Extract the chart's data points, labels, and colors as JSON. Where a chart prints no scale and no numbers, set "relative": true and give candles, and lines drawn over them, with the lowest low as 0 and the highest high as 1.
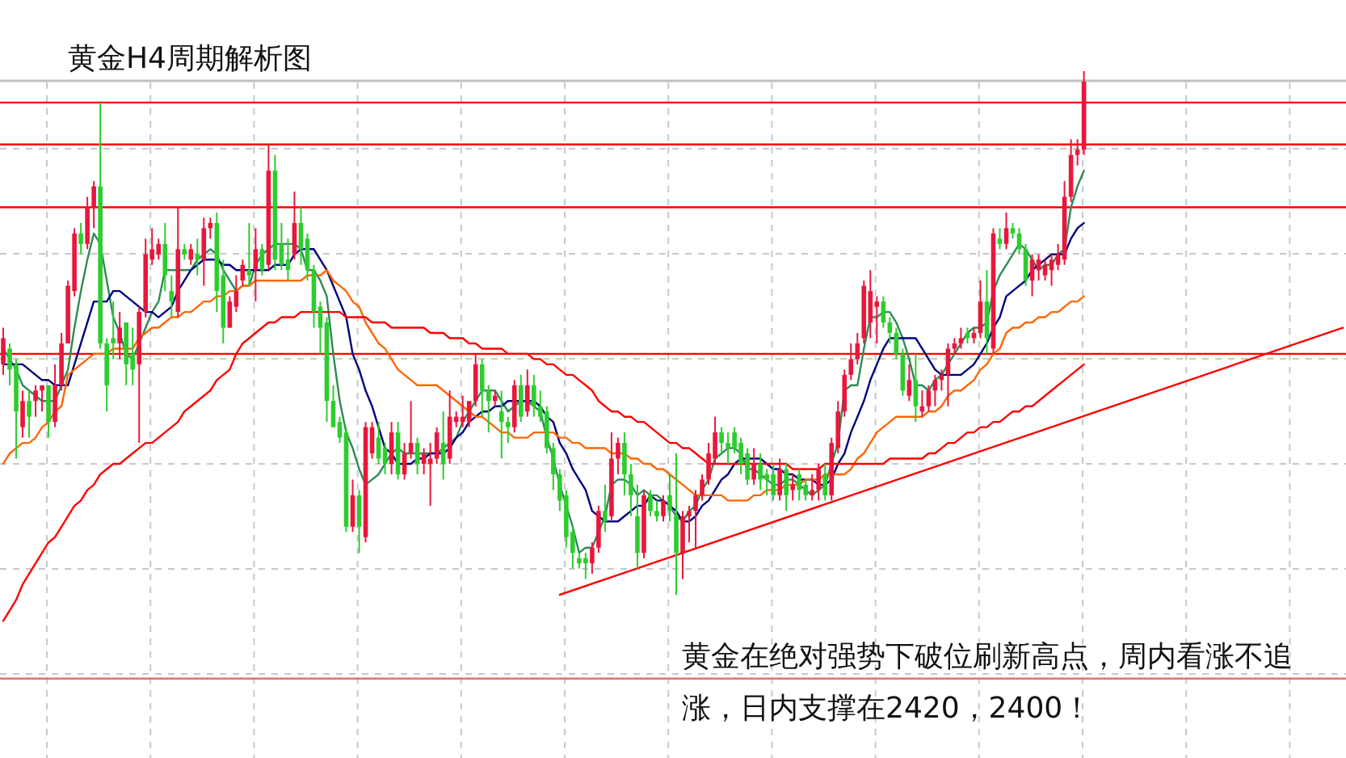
{
  "chart_data": {
    "type": "candlestick",
    "title": "黄金H4周期解析图",
    "annotations": [
      "黄金在绝对强势下破位刷新高点，周内看涨不追涨，日内支撑在2420，2400！"
    ],
    "relative": true,
    "grid": true,
    "categories": [
      null,
      null,
      null,
      null,
      null,
      null,
      null,
      null,
      null,
      null,
      null,
      null,
      null,
      null,
      null,
      null,
      null,
      null,
      null,
      null,
      null,
      null,
      null,
      null,
      null,
      null,
      null,
      null,
      null,
      null,
      null,
      null,
      null,
      null,
      null,
      null,
      null,
      null,
      null,
      null,
      null,
      null,
      null,
      null,
      null,
      null,
      null,
      null,
      null,
      null,
      null,
      null,
      null,
      null,
      null,
      null,
      null,
      null,
      null,
      null,
      null,
      null,
      null,
      null,
      null,
      null,
      null,
      null,
      null,
      null,
      null,
      null,
      null,
      null,
      null,
      null,
      null,
      null,
      null,
      null,
      null,
      null,
      null,
      null,
      null,
      null,
      null,
      null,
      null,
      null,
      null,
      null,
      null,
      null,
      null,
      null,
      null,
      null,
      null,
      null,
      null,
      null,
      null,
      null,
      null,
      null,
      null,
      null,
      null,
      null,
      null,
      null,
      null,
      null,
      null,
      null,
      null,
      null,
      null,
      null,
      null,
      null,
      null,
      null,
      null,
      null,
      null,
      null,
      null,
      null,
      null,
      null,
      null,
      null,
      null,
      null,
      null,
      null,
      null,
      null,
      null,
      null,
      null,
      null,
      null,
      null,
      null,
      null,
      null,
      null,
      null,
      null,
      null,
      null,
      null,
      null,
      null,
      null,
      null,
      null,
      null,
      null,
      null,
      null,
      null,
      null,
      null,
      null,
      null,
      null,
      null,
      null,
      null,
      null,
      null,
      null,
      null,
      null,
      null,
      null,
      null,
      null,
      null,
      null,
      null,
      null,
      null,
      null,
      null,
      null,
      null,
      null,
      null,
      null,
      null,
      null,
      null,
      null,
      null,
      null,
      null,
      null,
      null,
      null,
      null,
      null,
      null,
      null
    ],
    "colors": [
      "#e8173c",
      "#2ecc2e",
      "#2ecc2e",
      "#e8173c",
      "#2ecc2e",
      "#e8173c",
      "#e8173c",
      "#2ecc2e",
      "#e8173c",
      "#e8173c",
      "#e8173c",
      "#e8173c",
      "#2ecc2e",
      "#e8173c",
      "#e8173c",
      "#2ecc2e",
      "#2ecc2e",
      "#2ecc2e",
      "#e8173c",
      "#2ecc2e",
      "#2ecc2e",
      "#e8173c",
      "#e8173c",
      "#e8173c",
      "#e8173c",
      "#2ecc2e",
      "#2ecc2e",
      "#e8173c",
      "#2ecc2e",
      "#e8173c",
      "#2ecc2e",
      "#e8173c",
      "#e8173c",
      "#2ecc2e",
      "#2ecc2e",
      "#e8173c",
      "#e8173c",
      "#e8173c",
      "#2ecc2e",
      "#e8173c",
      "#2ecc2e",
      "#e8173c",
      "#2ecc2e",
      "#2ecc2e",
      "#2ecc2e",
      "#e8173c",
      "#2ecc2e",
      "#2ecc2e",
      "#2ecc2e",
      "#2ecc2e",
      "#2ecc2e",
      "#2ecc2e",
      "#2ecc2e",
      "#2ecc2e",
      "#e8173c",
      "#2ecc2e",
      "#e8173c",
      "#e8173c",
      "#2ecc2e",
      "#2ecc2e",
      "#e8173c",
      "#2ecc2e",
      "#e8173c",
      "#e8173c",
      "#2ecc2e",
      "#e8173c",
      "#e8173c",
      "#e8173c",
      "#2ecc2e",
      "#e8173c",
      "#e8173c",
      "#e8173c",
      "#e8173c",
      "#e8173c",
      "#2ecc2e",
      "#2ecc2e",
      "#e8173c",
      "#2ecc2e",
      "#2ecc2e",
      "#e8173c",
      "#2ecc2e",
      "#e8173c",
      "#2ecc2e",
      "#2ecc2e",
      "#2ecc2e",
      "#2ecc2e",
      "#2ecc2e",
      "#2ecc2e",
      "#2ecc2e",
      "#2ecc2e",
      "#2ecc2e",
      "#e8173c",
      "#e8173c",
      "#2ecc2e",
      "#e8173c",
      "#e8173c",
      "#2ecc2e",
      "#2ecc2e",
      "#2ecc2e",
      "#e8173c",
      "#2ecc2e",
      "#2ecc2e",
      "#e8173c",
      "#2ecc2e",
      "#2ecc2e",
      "#e8173c",
      "#e8173c",
      "#e8173c",
      "#e8173c",
      "#e8173c",
      "#e8173c",
      "#2ecc2e",
      "#2ecc2e",
      "#2ecc2e",
      "#2ecc2e",
      "#2ecc2e",
      "#e8173c",
      "#2ecc2e",
      "#2ecc2e",
      "#2ecc2e",
      "#e8173c",
      "#2ecc2e",
      "#e8173c",
      "#2ecc2e",
      "#2ecc2e",
      "#e8173c",
      "#e8173c",
      "#2ecc2e",
      "#e8173c",
      "#e8173c",
      "#e8173c",
      "#e8173c",
      "#e8173c",
      "#e8173c",
      "#e8173c",
      "#e8173c",
      "#2ecc2e",
      "#2ecc2e",
      "#2ecc2e",
      "#2ecc2e",
      "#e8173c",
      "#2ecc2e",
      "#e8173c",
      "#e8173c",
      "#e8173c",
      "#e8173c",
      "#e8173c",
      "#e8173c",
      "#e8173c",
      "#2ecc2e",
      "#e8173c",
      "#e8173c",
      "#2ecc2e",
      "#e8173c",
      "#2ecc2e",
      "#e8173c",
      "#2ecc2e",
      "#2ecc2e",
      "#2ecc2e",
      "#e8173c",
      "#e8173c",
      "#e8173c",
      "#e8173c",
      "#e8173c",
      "#e8173c",
      "#e8173c",
      "#e8173c",
      "#e8173c",
      null,
      null,
      null,
      null,
      null,
      null,
      null,
      null,
      null,
      null,
      null,
      null,
      null,
      null,
      null,
      null,
      null,
      null,
      null,
      null,
      null,
      null,
      null,
      null,
      null,
      null,
      null,
      null,
      null,
      null,
      null,
      null,
      null,
      null,
      null,
      null,
      null,
      null,
      null,
      null
    ],
    "ohlc": [
      [
        0.44,
        0.51,
        0.42,
        0.49
      ],
      [
        0.47,
        0.48,
        0.4,
        0.43
      ],
      [
        0.44,
        0.45,
        0.26,
        0.35
      ],
      [
        0.32,
        0.39,
        0.3,
        0.37
      ],
      [
        0.37,
        0.39,
        0.3,
        0.34
      ],
      [
        0.37,
        0.4,
        0.34,
        0.39
      ],
      [
        0.39,
        0.4,
        0.35,
        0.4
      ],
      [
        0.4,
        0.4,
        0.3,
        0.33
      ],
      [
        0.33,
        0.44,
        0.32,
        0.4
      ],
      [
        0.4,
        0.5,
        0.39,
        0.48
      ],
      [
        0.48,
        0.6,
        0.48,
        0.59
      ],
      [
        0.58,
        0.7,
        0.57,
        0.69
      ],
      [
        0.69,
        0.71,
        0.65,
        0.67
      ],
      [
        0.67,
        0.76,
        0.66,
        0.74
      ],
      [
        0.74,
        0.79,
        0.7,
        0.78
      ],
      [
        0.78,
        0.94,
        0.47,
        0.48
      ],
      [
        0.48,
        0.49,
        0.35,
        0.4
      ],
      [
        0.49,
        0.56,
        0.45,
        0.48
      ],
      [
        0.48,
        0.54,
        0.45,
        0.51
      ],
      [
        0.52,
        0.52,
        0.4,
        0.44
      ],
      [
        0.46,
        0.51,
        0.4,
        0.43
      ],
      [
        0.44,
        0.55,
        0.29,
        0.54
      ],
      [
        0.54,
        0.68,
        0.53,
        0.65
      ],
      [
        0.64,
        0.7,
        0.63,
        0.66
      ],
      [
        0.65,
        0.68,
        0.64,
        0.67
      ],
      [
        0.67,
        0.71,
        0.58,
        0.61
      ],
      [
        0.58,
        0.61,
        0.53,
        0.56
      ],
      [
        0.54,
        0.74,
        0.53,
        0.66
      ],
      [
        0.66,
        0.67,
        0.64,
        0.65
      ],
      [
        0.64,
        0.67,
        0.63,
        0.66
      ],
      [
        0.65,
        0.68,
        0.61,
        0.64
      ],
      [
        0.64,
        0.72,
        0.59,
        0.7
      ],
      [
        0.7,
        0.72,
        0.68,
        0.71
      ],
      [
        0.71,
        0.73,
        0.54,
        0.58
      ],
      [
        0.61,
        0.64,
        0.48,
        0.51
      ],
      [
        0.51,
        0.57,
        0.51,
        0.56
      ],
      [
        0.55,
        0.61,
        0.54,
        0.58
      ],
      [
        0.6,
        0.64,
        0.59,
        0.63
      ],
      [
        0.62,
        0.71,
        0.59,
        0.61
      ],
      [
        0.62,
        0.7,
        0.56,
        0.66
      ],
      [
        0.66,
        0.67,
        0.61,
        0.62
      ],
      [
        0.63,
        0.86,
        0.62,
        0.81
      ],
      [
        0.81,
        0.84,
        0.62,
        0.64
      ],
      [
        0.67,
        0.71,
        0.62,
        0.63
      ],
      [
        0.64,
        0.68,
        0.6,
        0.62
      ],
      [
        0.65,
        0.77,
        0.64,
        0.71
      ],
      [
        0.71,
        0.74,
        0.63,
        0.66
      ],
      [
        0.68,
        0.69,
        0.6,
        0.62
      ],
      [
        0.62,
        0.63,
        0.51,
        0.54
      ],
      [
        0.55,
        0.56,
        0.46,
        0.51
      ],
      [
        0.52,
        0.53,
        0.33,
        0.37
      ],
      [
        0.37,
        0.4,
        0.32,
        0.32
      ],
      [
        0.33,
        0.34,
        0.29,
        0.3
      ],
      [
        0.31,
        0.32,
        0.12,
        0.13
      ],
      [
        0.13,
        0.22,
        0.12,
        0.19
      ],
      [
        0.19,
        0.2,
        0.08,
        0.13
      ],
      [
        0.11,
        0.33,
        0.1,
        0.32
      ],
      [
        0.27,
        0.33,
        0.26,
        0.32
      ],
      [
        0.3,
        0.33,
        0.25,
        0.26
      ],
      [
        0.28,
        0.29,
        0.23,
        0.25
      ],
      [
        0.25,
        0.33,
        0.23,
        0.31
      ],
      [
        0.31,
        0.33,
        0.22,
        0.23
      ],
      [
        0.23,
        0.29,
        0.22,
        0.27
      ],
      [
        0.27,
        0.37,
        0.26,
        0.29
      ],
      [
        0.29,
        0.3,
        0.23,
        0.25
      ],
      [
        0.25,
        0.28,
        0.23,
        0.27
      ],
      [
        0.25,
        0.29,
        0.17,
        0.26
      ],
      [
        0.26,
        0.32,
        0.25,
        0.31
      ],
      [
        0.29,
        0.35,
        0.22,
        0.25
      ],
      [
        0.26,
        0.39,
        0.25,
        0.34
      ],
      [
        0.33,
        0.35,
        0.32,
        0.34
      ],
      [
        0.33,
        0.38,
        0.32,
        0.34
      ],
      [
        0.33,
        0.37,
        0.32,
        0.37
      ],
      [
        0.37,
        0.46,
        0.36,
        0.44
      ],
      [
        0.44,
        0.45,
        0.34,
        0.39
      ],
      [
        0.39,
        0.4,
        0.31,
        0.37
      ],
      [
        0.37,
        0.39,
        0.36,
        0.38
      ],
      [
        0.35,
        0.39,
        0.26,
        0.33
      ],
      [
        0.33,
        0.34,
        0.29,
        0.32
      ],
      [
        0.32,
        0.41,
        0.31,
        0.4
      ],
      [
        0.4,
        0.42,
        0.33,
        0.34
      ],
      [
        0.35,
        0.43,
        0.34,
        0.4
      ],
      [
        0.4,
        0.42,
        0.34,
        0.36
      ],
      [
        0.36,
        0.39,
        0.33,
        0.34
      ],
      [
        0.35,
        0.36,
        0.27,
        0.28
      ],
      [
        0.28,
        0.29,
        0.2,
        0.23
      ],
      [
        0.23,
        0.24,
        0.16,
        0.18
      ],
      [
        0.19,
        0.2,
        0.09,
        0.11
      ],
      [
        0.12,
        0.13,
        0.05,
        0.08
      ],
      [
        0.07,
        0.08,
        0.05,
        0.06
      ],
      [
        0.07,
        0.08,
        0.03,
        0.06
      ],
      [
        0.06,
        0.1,
        0.04,
        0.09
      ],
      [
        0.09,
        0.17,
        0.08,
        0.16
      ],
      [
        0.16,
        0.21,
        0.12,
        0.14
      ],
      [
        0.15,
        0.31,
        0.14,
        0.26
      ],
      [
        0.26,
        0.3,
        0.23,
        0.29
      ],
      [
        0.29,
        0.31,
        0.19,
        0.23
      ],
      [
        0.23,
        0.25,
        0.15,
        0.19
      ],
      [
        0.15,
        0.21,
        0.05,
        0.08
      ],
      [
        0.08,
        0.2,
        0.07,
        0.19
      ],
      [
        0.19,
        0.2,
        0.15,
        0.16
      ],
      [
        0.16,
        0.18,
        0.14,
        0.15
      ],
      [
        0.15,
        0.19,
        0.14,
        0.18
      ],
      [
        0.19,
        0.23,
        0.14,
        0.16
      ],
      [
        0.15,
        0.27,
        0.0,
        0.08
      ],
      [
        0.08,
        0.16,
        0.03,
        0.15
      ],
      [
        0.15,
        0.17,
        0.1,
        0.16
      ],
      [
        0.16,
        0.2,
        0.09,
        0.19
      ],
      [
        0.19,
        0.23,
        0.18,
        0.22
      ],
      [
        0.22,
        0.29,
        0.21,
        0.27
      ],
      [
        0.26,
        0.34,
        0.25,
        0.31
      ],
      [
        0.31,
        0.32,
        0.27,
        0.29
      ],
      [
        0.29,
        0.31,
        0.25,
        0.28
      ],
      [
        0.31,
        0.32,
        0.27,
        0.28
      ],
      [
        0.29,
        0.3,
        0.23,
        0.25
      ],
      [
        0.27,
        0.28,
        0.21,
        0.22
      ],
      [
        0.22,
        0.28,
        0.21,
        0.25
      ],
      [
        0.25,
        0.27,
        0.2,
        0.22
      ],
      [
        0.23,
        0.24,
        0.19,
        0.22
      ],
      [
        0.23,
        0.25,
        0.18,
        0.19
      ],
      [
        0.19,
        0.26,
        0.18,
        0.24
      ],
      [
        0.24,
        0.25,
        0.16,
        0.19
      ],
      [
        0.2,
        0.23,
        0.18,
        0.21
      ],
      [
        0.23,
        0.24,
        0.18,
        0.2
      ],
      [
        0.21,
        0.22,
        0.18,
        0.19
      ],
      [
        0.19,
        0.23,
        0.18,
        0.2
      ],
      [
        0.2,
        0.25,
        0.18,
        0.24
      ],
      [
        0.23,
        0.25,
        0.18,
        0.19
      ],
      [
        0.19,
        0.3,
        0.18,
        0.29
      ],
      [
        0.28,
        0.37,
        0.27,
        0.35
      ],
      [
        0.35,
        0.43,
        0.34,
        0.42
      ],
      [
        0.42,
        0.48,
        0.41,
        0.45
      ],
      [
        0.45,
        0.5,
        0.44,
        0.48
      ],
      [
        0.49,
        0.6,
        0.48,
        0.59
      ],
      [
        0.52,
        0.62,
        0.49,
        0.58
      ],
      [
        0.55,
        0.57,
        0.48,
        0.56
      ],
      [
        0.56,
        0.57,
        0.51,
        0.52
      ],
      [
        0.52,
        0.53,
        0.48,
        0.5
      ],
      [
        0.5,
        0.51,
        0.45,
        0.46
      ],
      [
        0.46,
        0.47,
        0.38,
        0.39
      ],
      [
        0.38,
        0.44,
        0.37,
        0.41
      ],
      [
        0.41,
        0.46,
        0.33,
        0.36
      ],
      [
        0.35,
        0.39,
        0.34,
        0.36
      ],
      [
        0.36,
        0.4,
        0.35,
        0.39
      ],
      [
        0.39,
        0.42,
        0.36,
        0.41
      ],
      [
        0.41,
        0.43,
        0.39,
        0.42
      ],
      [
        0.42,
        0.48,
        0.36,
        0.47
      ],
      [
        0.47,
        0.49,
        0.46,
        0.48
      ],
      [
        0.48,
        0.51,
        0.47,
        0.49
      ],
      [
        0.5,
        0.51,
        0.48,
        0.49
      ],
      [
        0.49,
        0.51,
        0.48,
        0.5
      ],
      [
        0.5,
        0.6,
        0.49,
        0.56
      ],
      [
        0.56,
        0.62,
        0.46,
        0.49
      ],
      [
        0.47,
        0.7,
        0.46,
        0.69
      ],
      [
        0.68,
        0.7,
        0.66,
        0.67
      ],
      [
        0.67,
        0.73,
        0.66,
        0.7
      ],
      [
        0.7,
        0.71,
        0.68,
        0.69
      ],
      [
        0.69,
        0.7,
        0.65,
        0.66
      ],
      [
        0.66,
        0.67,
        0.59,
        0.6
      ],
      [
        0.6,
        0.65,
        0.57,
        0.64
      ],
      [
        0.62,
        0.65,
        0.6,
        0.64
      ],
      [
        0.61,
        0.64,
        0.6,
        0.63
      ],
      [
        0.62,
        0.65,
        0.59,
        0.64
      ],
      [
        0.63,
        0.67,
        0.62,
        0.65
      ],
      [
        0.64,
        0.79,
        0.63,
        0.76
      ],
      [
        0.76,
        0.87,
        0.75,
        0.84
      ],
      [
        0.84,
        0.87,
        0.82,
        0.85
      ],
      [
        0.85,
        1.0,
        0.84,
        0.98
      ],
      null,
      null,
      null,
      null,
      null,
      null,
      null,
      null,
      null,
      null,
      null,
      null,
      null,
      null,
      null,
      null,
      null,
      null,
      null,
      null,
      null,
      null,
      null,
      null,
      null,
      null,
      null,
      null,
      null,
      null,
      null,
      null,
      null,
      null,
      null,
      null,
      null,
      null,
      null,
      null
    ],
    "series": [
      {
        "type": "line",
        "color": "#2e8b57",
        "values": [
          0.47,
          0.45,
          0.43,
          0.4,
          0.39,
          0.38,
          0.37,
          0.37,
          0.37,
          0.4,
          0.43,
          0.51,
          0.58,
          0.64,
          0.69,
          0.67,
          0.6,
          0.53,
          0.5,
          0.46,
          0.45,
          0.48,
          0.51,
          0.54,
          0.56,
          0.62,
          0.62,
          0.62,
          0.62,
          0.62,
          0.64,
          0.65,
          0.66,
          0.65,
          0.62,
          0.6,
          0.58,
          0.59,
          0.59,
          0.63,
          0.65,
          0.66,
          0.67,
          0.67,
          0.67,
          0.67,
          0.66,
          0.62,
          0.62,
          0.6,
          0.57,
          0.46,
          0.37,
          0.31,
          0.28,
          0.24,
          0.21,
          0.22,
          0.23,
          0.25,
          0.27,
          0.28,
          0.27,
          0.27,
          0.27,
          0.27,
          0.27,
          0.27,
          0.28,
          0.29,
          0.3,
          0.33,
          0.35,
          0.37,
          0.39,
          0.39,
          0.39,
          0.37,
          0.35,
          0.36,
          0.37,
          0.37,
          0.36,
          0.35,
          0.3,
          0.26,
          0.21,
          0.17,
          0.13,
          0.08,
          0.09,
          0.09,
          0.12,
          0.15,
          0.21,
          0.22,
          0.22,
          0.21,
          0.19,
          0.2,
          0.19,
          0.19,
          0.18,
          0.17,
          0.15,
          0.14,
          0.16,
          0.17,
          0.2,
          0.22,
          0.26,
          0.27,
          0.28,
          0.28,
          0.27,
          0.24,
          0.24,
          0.23,
          0.22,
          0.21,
          0.21,
          0.22,
          0.22,
          0.21,
          0.2,
          0.19,
          0.2,
          0.21,
          0.25,
          0.29,
          0.39,
          0.4,
          0.4,
          0.47,
          0.53,
          0.53,
          0.54,
          0.54,
          0.52,
          0.49,
          0.45,
          0.4,
          0.4,
          0.39,
          0.41,
          0.42,
          0.44,
          0.46,
          0.48,
          0.5,
          0.51,
          0.51,
          0.52,
          0.58,
          0.61,
          0.63,
          0.65,
          0.67,
          0.66,
          0.64,
          0.62,
          0.63,
          0.63,
          0.65,
          0.66,
          0.74,
          0.78,
          0.81,
          null,
          null,
          null,
          null,
          null,
          null,
          null,
          null,
          null,
          null,
          null,
          null,
          null,
          null,
          null,
          null,
          null,
          null,
          null,
          null,
          null,
          null,
          null,
          null,
          null,
          null,
          null,
          null,
          null,
          null,
          null,
          null,
          null,
          null,
          null,
          null,
          null,
          null,
          null,
          null
        ]
      },
      {
        "type": "line",
        "color": "#000080",
        "values": [
          0.44,
          0.44,
          0.44,
          0.44,
          0.43,
          0.42,
          0.41,
          0.41,
          0.4,
          0.4,
          0.4,
          0.44,
          0.48,
          0.52,
          0.56,
          0.56,
          0.56,
          0.58,
          0.58,
          0.57,
          0.56,
          0.55,
          0.54,
          0.54,
          0.53,
          0.54,
          0.55,
          0.58,
          0.6,
          0.62,
          0.63,
          0.64,
          0.64,
          0.64,
          0.63,
          0.63,
          0.62,
          0.62,
          0.62,
          0.62,
          0.62,
          0.62,
          0.63,
          0.63,
          0.63,
          0.65,
          0.66,
          0.66,
          0.66,
          0.64,
          0.62,
          0.59,
          0.56,
          0.53,
          0.46,
          0.43,
          0.39,
          0.36,
          0.32,
          0.28,
          0.27,
          0.25,
          0.25,
          0.25,
          0.26,
          0.26,
          0.27,
          0.27,
          0.27,
          0.28,
          0.3,
          0.31,
          0.33,
          0.34,
          0.35,
          0.35,
          0.36,
          0.36,
          0.37,
          0.37,
          0.37,
          0.37,
          0.37,
          0.36,
          0.34,
          0.33,
          0.29,
          0.27,
          0.24,
          0.22,
          0.2,
          0.16,
          0.15,
          0.14,
          0.14,
          0.14,
          0.15,
          0.16,
          0.17,
          0.17,
          0.19,
          0.18,
          0.18,
          0.17,
          0.16,
          0.14,
          0.14,
          0.15,
          0.17,
          0.18,
          0.2,
          0.22,
          0.23,
          0.25,
          0.26,
          0.26,
          0.26,
          0.26,
          0.25,
          0.24,
          0.24,
          0.23,
          0.23,
          0.22,
          0.22,
          0.22,
          0.21,
          0.21,
          0.22,
          0.25,
          0.27,
          0.31,
          0.34,
          0.37,
          0.41,
          0.44,
          0.47,
          0.49,
          0.49,
          0.49,
          0.49,
          0.49,
          0.47,
          0.45,
          0.43,
          0.42,
          0.42,
          0.42,
          0.42,
          0.43,
          0.44,
          0.46,
          0.48,
          0.51,
          0.53,
          0.57,
          0.58,
          0.59,
          0.6,
          0.62,
          0.63,
          0.64,
          0.65,
          0.65,
          0.65,
          0.68,
          0.7,
          0.71,
          null,
          null,
          null,
          null,
          null,
          null,
          null,
          null,
          null,
          null,
          null,
          null,
          null,
          null,
          null,
          null,
          null,
          null,
          null,
          null,
          null,
          null,
          null,
          null,
          null,
          null,
          null,
          null,
          null,
          null,
          null,
          null,
          null,
          null,
          null,
          null,
          null,
          null,
          null,
          null
        ]
      },
      {
        "type": "line",
        "color": "#ff6600",
        "values": [
          0.25,
          0.27,
          0.28,
          0.29,
          0.29,
          0.3,
          0.32,
          0.33,
          0.35,
          0.36,
          0.42,
          0.43,
          0.44,
          0.45,
          0.46,
          0.46,
          0.46,
          0.47,
          0.47,
          0.47,
          0.47,
          0.49,
          0.5,
          0.51,
          0.51,
          0.52,
          0.53,
          0.53,
          0.54,
          0.54,
          0.55,
          0.56,
          0.56,
          0.57,
          0.57,
          0.58,
          0.58,
          0.59,
          0.59,
          0.6,
          0.6,
          0.6,
          0.6,
          0.6,
          0.6,
          0.6,
          0.6,
          0.61,
          0.61,
          0.61,
          0.62,
          0.6,
          0.59,
          0.58,
          0.56,
          0.55,
          0.52,
          0.5,
          0.48,
          0.47,
          0.45,
          0.43,
          0.42,
          0.41,
          0.4,
          0.4,
          0.4,
          0.4,
          0.39,
          0.38,
          0.37,
          0.36,
          0.35,
          0.34,
          0.34,
          0.33,
          0.32,
          0.31,
          0.31,
          0.3,
          0.3,
          0.3,
          0.31,
          0.31,
          0.31,
          0.31,
          0.3,
          0.3,
          0.29,
          0.29,
          0.28,
          0.28,
          0.28,
          0.28,
          0.27,
          0.27,
          0.27,
          0.26,
          0.26,
          0.25,
          0.25,
          0.24,
          0.24,
          0.23,
          0.22,
          0.21,
          0.2,
          0.19,
          0.19,
          0.19,
          0.19,
          0.19,
          0.18,
          0.18,
          0.18,
          0.18,
          0.19,
          0.19,
          0.2,
          0.2,
          0.2,
          0.21,
          0.21,
          0.21,
          0.22,
          0.22,
          0.22,
          0.23,
          0.23,
          0.23,
          0.23,
          0.24,
          0.26,
          0.27,
          0.29,
          0.31,
          0.32,
          0.33,
          0.34,
          0.34,
          0.34,
          0.34,
          0.34,
          0.35,
          0.35,
          0.36,
          0.38,
          0.39,
          0.39,
          0.4,
          0.41,
          0.43,
          0.44,
          0.46,
          0.47,
          0.5,
          0.51,
          0.51,
          0.52,
          0.52,
          0.53,
          0.53,
          0.54,
          0.54,
          0.55,
          0.56,
          0.56,
          0.57,
          null,
          null,
          null,
          null,
          null,
          null,
          null,
          null,
          null,
          null,
          null,
          null,
          null,
          null,
          null,
          null,
          null,
          null,
          null,
          null,
          null,
          null,
          null,
          null,
          null,
          null,
          null,
          null,
          null,
          null,
          null,
          null,
          null,
          null,
          null,
          null,
          null,
          null,
          null,
          null
        ]
      },
      {
        "type": "line",
        "color": "#ff0000",
        "values": [
          -0.05,
          -0.03,
          -0.01,
          0.02,
          0.04,
          0.06,
          0.08,
          0.1,
          0.11,
          0.13,
          0.15,
          0.17,
          0.18,
          0.2,
          0.21,
          0.23,
          0.24,
          0.25,
          0.25,
          0.26,
          0.27,
          0.28,
          0.29,
          0.29,
          0.3,
          0.31,
          0.32,
          0.33,
          0.35,
          0.36,
          0.37,
          0.38,
          0.39,
          0.41,
          0.42,
          0.43,
          0.46,
          0.48,
          0.49,
          0.5,
          0.51,
          0.52,
          0.52,
          0.53,
          0.53,
          0.53,
          0.54,
          0.54,
          0.54,
          0.54,
          0.54,
          0.54,
          0.54,
          0.53,
          0.53,
          0.53,
          0.53,
          0.52,
          0.52,
          0.52,
          0.51,
          0.51,
          0.51,
          0.51,
          0.51,
          0.51,
          0.5,
          0.5,
          0.5,
          0.49,
          0.49,
          0.49,
          0.48,
          0.48,
          0.47,
          0.47,
          0.47,
          0.47,
          0.46,
          0.46,
          0.46,
          0.46,
          0.45,
          0.45,
          0.44,
          0.44,
          0.43,
          0.42,
          0.42,
          0.41,
          0.4,
          0.39,
          0.37,
          0.36,
          0.35,
          0.35,
          0.34,
          0.34,
          0.33,
          0.33,
          0.32,
          0.31,
          0.3,
          0.29,
          0.29,
          0.28,
          0.28,
          0.27,
          0.26,
          0.25,
          0.25,
          0.25,
          0.25,
          0.25,
          0.25,
          0.25,
          0.25,
          0.25,
          0.25,
          0.25,
          0.25,
          0.25,
          0.24,
          0.24,
          0.24,
          0.24,
          0.24,
          0.25,
          0.25,
          0.25,
          0.25,
          0.25,
          0.25,
          0.25,
          0.25,
          0.25,
          0.25,
          0.26,
          0.26,
          0.26,
          0.26,
          0.26,
          0.26,
          0.27,
          0.27,
          0.28,
          0.29,
          0.29,
          0.3,
          0.31,
          0.31,
          0.32,
          0.32,
          0.33,
          0.33,
          0.34,
          0.35,
          0.35,
          0.36,
          0.36,
          0.37,
          0.38,
          0.39,
          0.4,
          0.41,
          0.42,
          0.43,
          0.44,
          null,
          null,
          null,
          null,
          null,
          null,
          null,
          null,
          null,
          null,
          null,
          null,
          null,
          null,
          null,
          null,
          null,
          null,
          null,
          null,
          null,
          null,
          null,
          null,
          null,
          null,
          null,
          null,
          null,
          null,
          null,
          null,
          null,
          null,
          null,
          null,
          null,
          null,
          null,
          null
        ]
      },
      {
        "type": "line",
        "color": "#ff0000",
        "values": [
          null,
          null,
          null,
          null,
          null,
          null,
          null,
          null,
          null,
          null,
          null,
          null,
          null,
          null,
          null,
          null,
          null,
          null,
          null,
          null,
          null,
          null,
          null,
          null,
          null,
          null,
          null,
          null,
          null,
          null,
          null,
          null,
          null,
          null,
          null,
          null,
          null,
          null,
          null,
          null,
          null,
          null,
          null,
          null,
          null,
          null,
          null,
          null,
          null,
          null,
          null,
          null,
          null,
          null,
          null,
          null,
          null,
          null,
          null,
          null,
          null,
          null,
          null,
          null,
          null,
          null,
          null,
          null,
          null,
          null,
          null,
          null,
          null,
          null,
          null,
          null,
          null,
          null,
          null,
          null,
          null,
          null,
          null,
          null,
          null,
          null,
          0.0,
          null,
          null,
          null,
          null,
          null,
          null,
          null,
          null,
          null,
          null,
          null,
          null,
          null,
          null,
          null,
          null,
          null,
          null,
          null,
          null,
          null,
          null,
          null,
          null,
          null,
          null,
          null,
          null,
          null,
          null,
          null,
          null,
          null,
          null,
          null,
          null,
          null,
          null,
          null,
          null,
          null,
          null,
          null,
          null,
          null,
          null,
          null,
          null,
          null,
          null,
          null,
          null,
          null,
          null,
          null,
          null,
          null,
          null,
          null,
          null,
          null,
          null,
          null,
          null,
          null,
          null,
          null,
          null,
          null,
          null,
          null,
          null,
          null,
          null,
          null,
          null,
          null,
          null,
          null,
          null,
          null,
          null,
          null,
          null,
          null,
          null,
          null,
          null,
          null,
          null,
          null,
          null,
          null,
          null,
          null,
          null,
          null,
          null,
          null,
          null,
          null,
          null,
          null,
          null,
          null,
          null,
          null,
          null,
          null,
          null,
          null,
          null,
          null,
          null,
          null,
          null,
          null,
          null,
          null,
          null,
          0.51
        ]
      }
    ],
    "ref_lines": [
      {
        "axis": "y",
        "value": 0.94,
        "color": "#ff0000"
      },
      {
        "axis": "y",
        "value": 0.86,
        "color": "#ff0000"
      },
      {
        "axis": "y",
        "value": 0.74,
        "color": "#ff0000"
      },
      {
        "axis": "y",
        "value": 0.46,
        "color": "#ff0000"
      },
      {
        "axis": "y",
        "value": -0.16,
        "color": "#e87070"
      }
    ]
  }
}
